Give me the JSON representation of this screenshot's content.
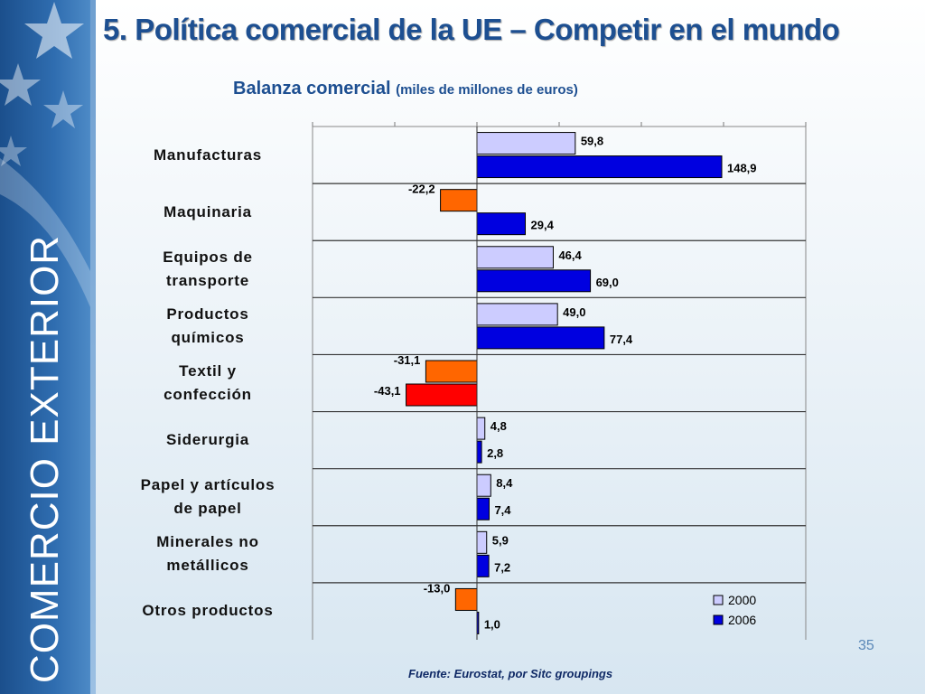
{
  "slide": {
    "title": "5. Política comercial de la UE – Competir en el mundo",
    "subtitle_main": "Balanza comercial",
    "subtitle_paren": "(miles de millones de euros)",
    "side_label": "COMERCIO EXTERIOR",
    "slide_number": "35",
    "source": "Fuente: Eurostat, por Sitc groupings"
  },
  "colors": {
    "pos_2000": "#ccccff",
    "pos_2006": "#0000e0",
    "neg_2000": "#ff6600",
    "neg_2006": "#ff0000",
    "title": "#1d4f91"
  },
  "chart_data": {
    "type": "bar",
    "orientation": "horizontal",
    "title": "Balanza comercial (miles de millones de euros)",
    "categories": [
      [
        "Manufacturas"
      ],
      [
        "Maquinaria"
      ],
      [
        "Equipos de",
        "transporte"
      ],
      [
        "Productos",
        "químicos"
      ],
      [
        "Textil y",
        "confección"
      ],
      [
        "Siderurgia"
      ],
      [
        "Papel y artículos",
        "de papel"
      ],
      [
        "Minerales no",
        "metállicos"
      ],
      [
        "Otros productos"
      ]
    ],
    "series": [
      {
        "name": "2000",
        "values": [
          59.8,
          -22.2,
          46.4,
          49.0,
          -31.1,
          4.8,
          8.4,
          5.9,
          -13.0
        ],
        "labels": [
          "59,8",
          "-22,2",
          "46,4",
          "49,0",
          "-31,1",
          "4,8",
          "8,4",
          "5,9",
          "-13,0"
        ]
      },
      {
        "name": "2006",
        "values": [
          148.9,
          29.4,
          69.0,
          77.4,
          -43.1,
          2.8,
          7.4,
          7.2,
          1.0
        ],
        "labels": [
          "148,9",
          "29,4",
          "69,0",
          "77,4",
          "-43,1",
          "2,8",
          "7,4",
          "7,2",
          "1,0"
        ]
      }
    ],
    "xlim": [
      -100,
      200
    ],
    "grid": true,
    "legend": "bottom-right"
  }
}
